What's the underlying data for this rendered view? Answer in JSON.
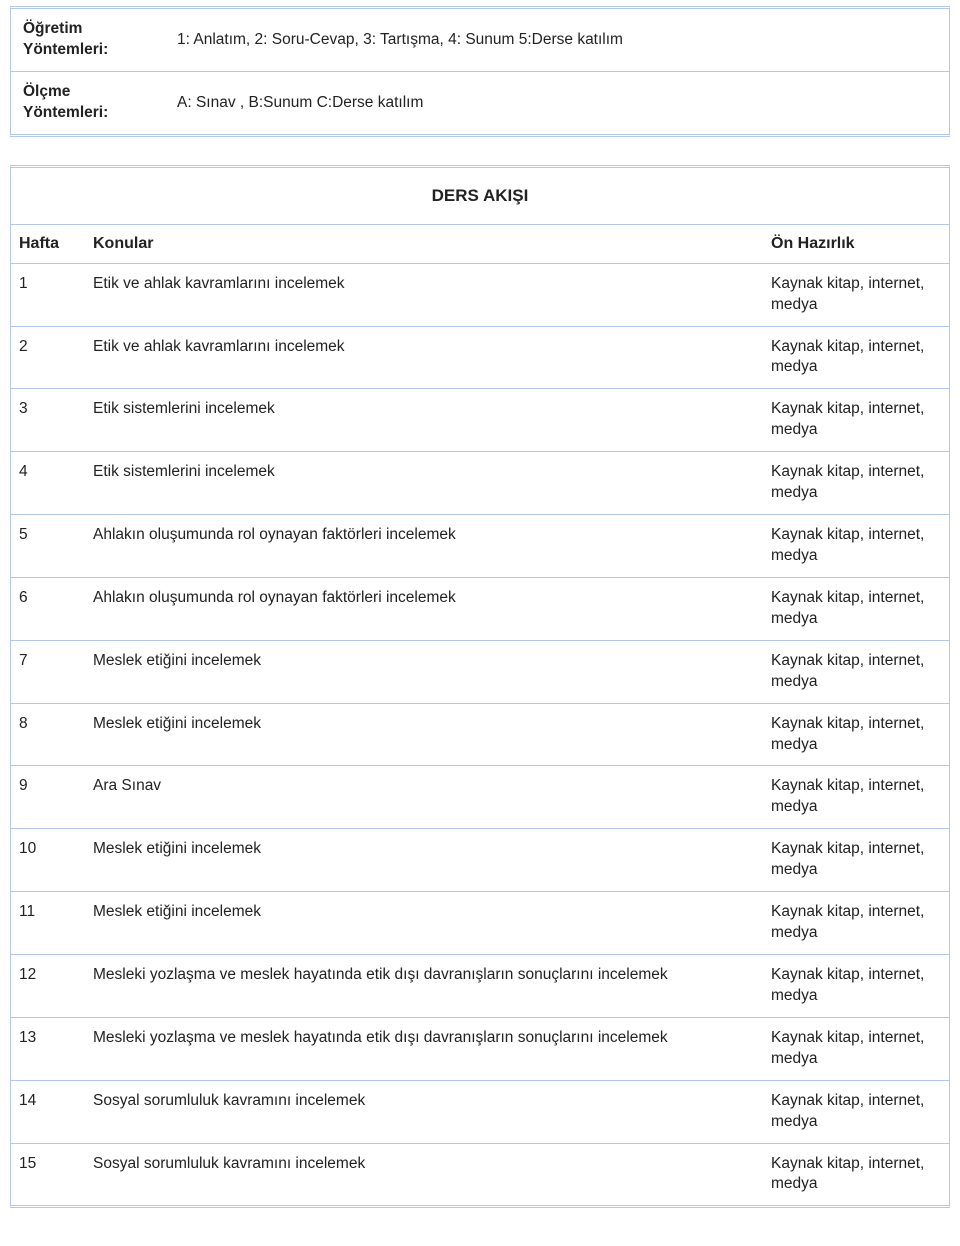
{
  "methods": {
    "teaching_label": "Öğretim Yöntemleri:",
    "teaching_value": "1: Anlatım, 2: Soru-Cevap, 3: Tartışma, 4: Sunum 5:Derse katılım",
    "assessment_label": "Ölçme Yöntemleri:",
    "assessment_value": "A: Sınav , B:Sunum C:Derse katılım"
  },
  "flow": {
    "title": "DERS AKIŞI",
    "header_week": "Hafta",
    "header_topic": "Konular",
    "header_prep": "Ön Hazırlık",
    "rows": [
      {
        "week": "1",
        "topic": "Etik ve ahlak kavramlarını incelemek",
        "prep": "Kaynak kitap, internet, medya",
        "small": false
      },
      {
        "week": "2",
        "topic": "Etik ve ahlak kavramlarını incelemek",
        "prep": "Kaynak kitap, internet, medya",
        "small": false
      },
      {
        "week": "3",
        "topic": "Etik sistemlerini incelemek",
        "prep": "Kaynak kitap, internet, medya",
        "small": false
      },
      {
        "week": "4",
        "topic": "Etik sistemlerini incelemek",
        "prep": "Kaynak kitap, internet, medya",
        "small": false
      },
      {
        "week": "5",
        "topic": "Ahlakın oluşumunda rol oynayan faktörleri incelemek",
        "prep": "Kaynak kitap, internet, medya",
        "small": false
      },
      {
        "week": "6",
        "topic": "Ahlakın oluşumunda rol oynayan faktörleri incelemek",
        "prep": "Kaynak kitap, internet, medya",
        "small": false
      },
      {
        "week": "7",
        "topic": "Meslek etiğini incelemek",
        "prep": "Kaynak kitap, internet, medya",
        "small": false
      },
      {
        "week": "8",
        "topic": "Meslek etiğini incelemek",
        "prep": "Kaynak kitap, internet, medya",
        "small": true
      },
      {
        "week": "9",
        "topic": "Ara Sınav",
        "prep": "Kaynak kitap, internet, medya",
        "small": false
      },
      {
        "week": "10",
        "topic": "Meslek etiğini incelemek",
        "prep": "Kaynak kitap, internet, medya",
        "small": false
      },
      {
        "week": "11",
        "topic": "Meslek etiğini incelemek",
        "prep": "Kaynak kitap, internet, medya",
        "small": false
      },
      {
        "week": "12",
        "topic": "Mesleki yozlaşma ve meslek hayatında etik dışı davranışların sonuçlarını incelemek",
        "prep": "Kaynak kitap, internet, medya",
        "small": false
      },
      {
        "week": "13",
        "topic": "Mesleki yozlaşma ve meslek hayatında etik dışı davranışların sonuçlarını incelemek",
        "prep": "Kaynak kitap, internet, medya",
        "small": false
      },
      {
        "week": "14",
        "topic": "Sosyal sorumluluk kavramını incelemek",
        "prep": "Kaynak kitap, internet, medya",
        "small": false
      },
      {
        "week": "15",
        "topic": "Sosyal sorumluluk kavramını incelemek",
        "prep": "Kaynak kitap, internet, medya",
        "small": false
      }
    ]
  }
}
